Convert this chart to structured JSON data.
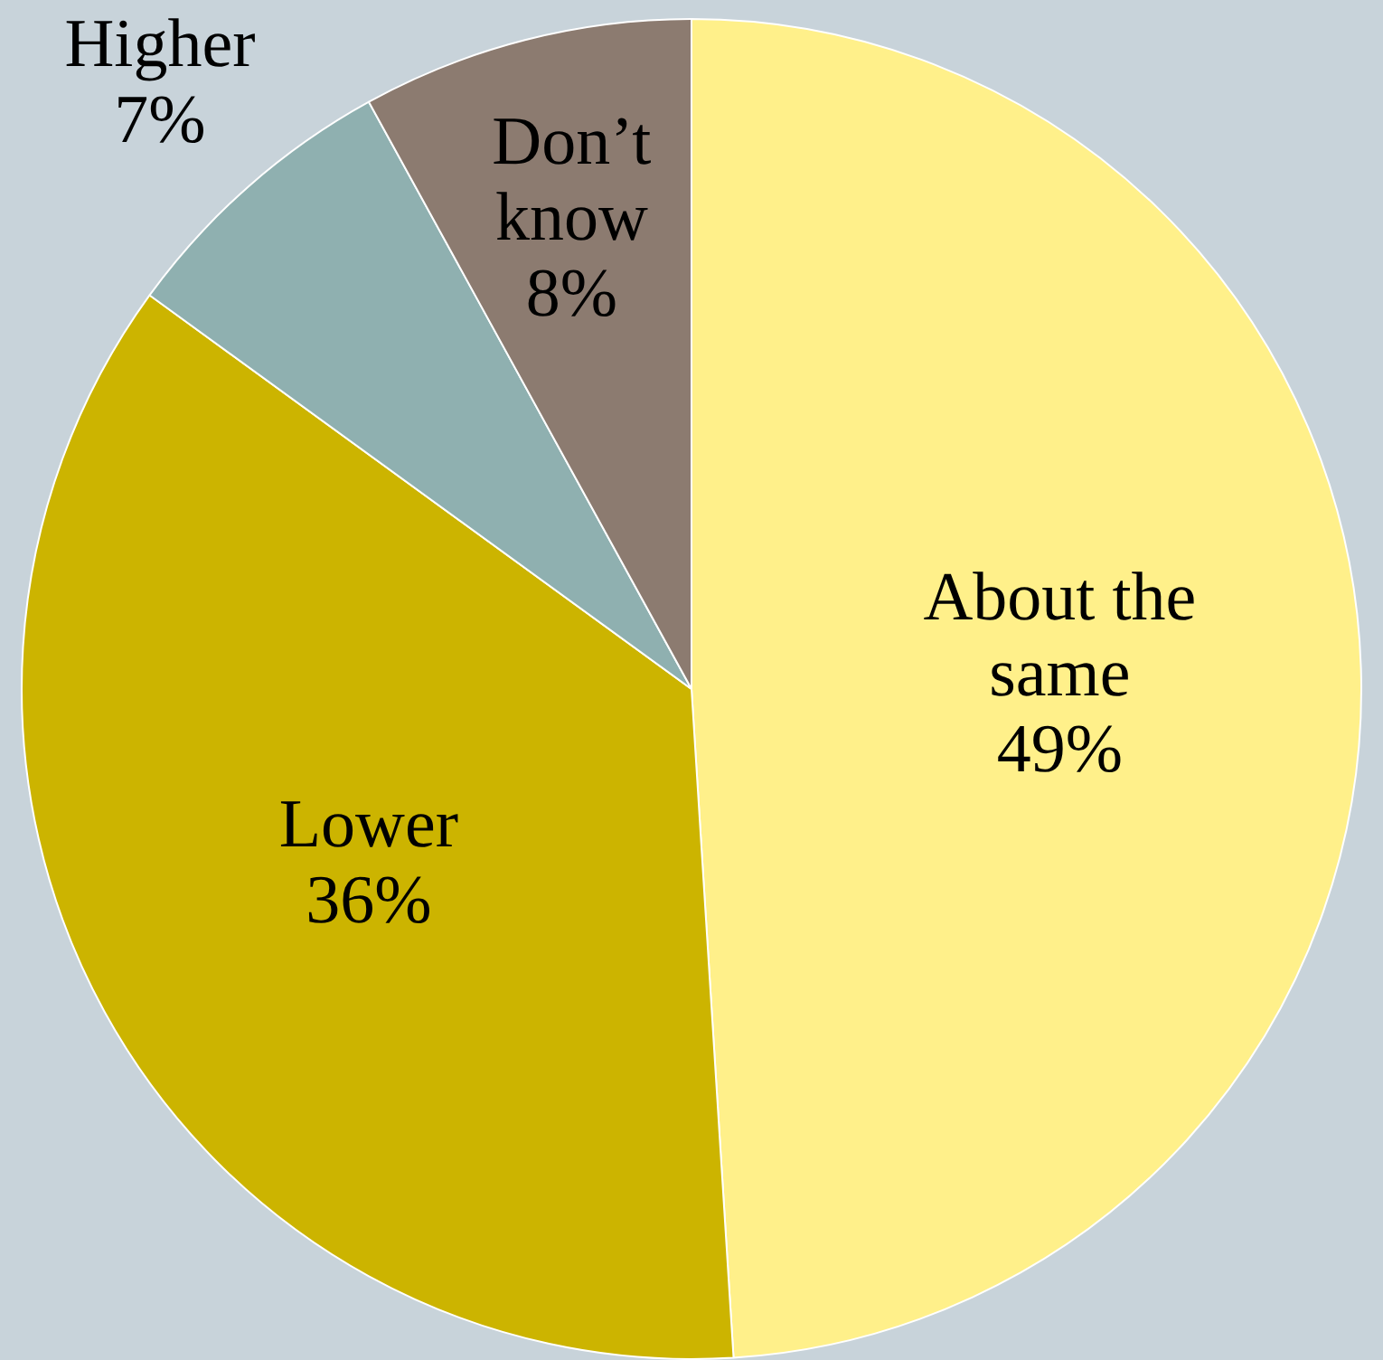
{
  "chart_data": {
    "type": "pie",
    "categories": [
      "About the same",
      "Lower",
      "Higher",
      "Don’t know"
    ],
    "values": [
      49,
      36,
      7,
      8
    ],
    "colors": [
      "#fff08a",
      "#ccb400",
      "#8fb0b0",
      "#8c7b70"
    ],
    "value_labels": [
      "49%",
      "36%",
      "7%",
      "8%"
    ]
  }
}
